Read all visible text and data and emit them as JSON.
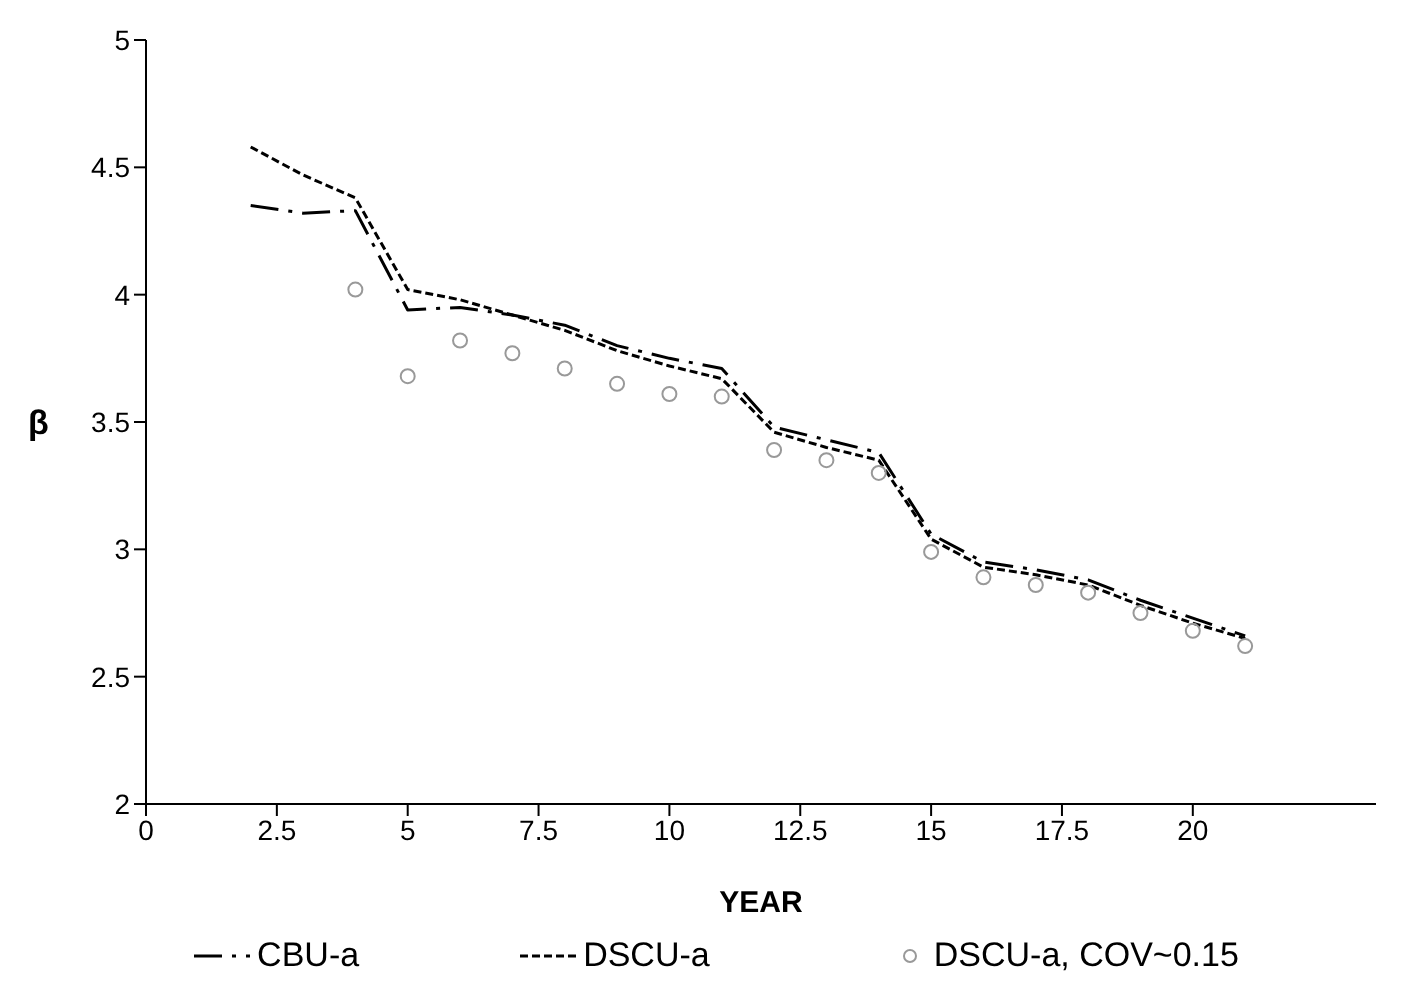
{
  "chart_data": {
    "type": "line",
    "xlabel": "YEAR",
    "ylabel": "β",
    "x": [
      2,
      3,
      4,
      5,
      6,
      7,
      8,
      9,
      10,
      11,
      12,
      13,
      14,
      15,
      16,
      17,
      18,
      19,
      20,
      21
    ],
    "series": [
      {
        "name": "CBU-a",
        "color": "#000000",
        "line_style": "dashed",
        "marker": "none",
        "values": [
          4.35,
          4.32,
          4.33,
          3.94,
          3.95,
          3.92,
          3.88,
          3.8,
          3.75,
          3.71,
          3.48,
          3.43,
          3.38,
          3.06,
          2.95,
          2.92,
          2.88,
          2.8,
          2.73,
          2.66
        ]
      },
      {
        "name": "DSCU-a",
        "color": "#000000",
        "line_style": "dotted",
        "marker": "none",
        "values": [
          4.58,
          4.47,
          4.38,
          4.02,
          3.98,
          3.92,
          3.86,
          3.78,
          3.72,
          3.67,
          3.46,
          3.4,
          3.35,
          3.04,
          2.93,
          2.9,
          2.86,
          2.78,
          2.71,
          2.65
        ]
      },
      {
        "name": "DSCU-a, COV~0.15",
        "type": "scatter",
        "color": "#999999",
        "marker": "circle",
        "x": [
          4,
          5,
          6,
          7,
          8,
          9,
          10,
          11,
          12,
          13,
          14,
          15,
          16,
          17,
          18,
          19,
          20,
          21
        ],
        "values": [
          4.02,
          3.68,
          3.82,
          3.77,
          3.71,
          3.65,
          3.61,
          3.6,
          3.39,
          3.35,
          3.3,
          2.99,
          2.89,
          2.86,
          2.83,
          2.75,
          2.68,
          2.62
        ]
      }
    ],
    "xlim": [
      0,
      23.5
    ],
    "xticks": [
      0,
      2.5,
      5,
      7.5,
      10,
      12.5,
      15,
      17.5,
      20
    ],
    "ylim": [
      2,
      5
    ],
    "yticks": [
      2,
      2.5,
      3,
      3.5,
      4,
      4.5,
      5
    ],
    "grid": false,
    "legend": "bottom"
  }
}
